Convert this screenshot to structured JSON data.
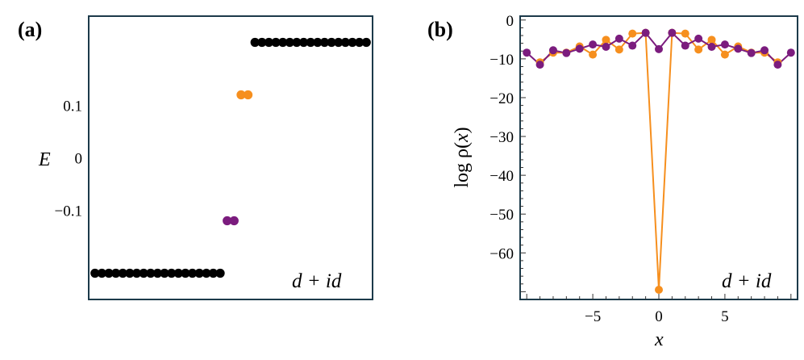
{
  "chart_data": [
    {
      "panel_label": "(a)",
      "type": "scatter",
      "ylabel": "E",
      "yticks": [
        {
          "value": 0.1,
          "label": "0.1"
        },
        {
          "value": 0,
          "label": "0"
        },
        {
          "value": -0.1,
          "label": "−0.1"
        }
      ],
      "ylim": [
        -0.27,
        0.27
      ],
      "xlim": [
        0.1,
        40.9
      ],
      "annotation": "d + id",
      "colors": {
        "bulk": "#000000",
        "upper_edge": "#F68F1E",
        "lower_edge": "#7B1C7E"
      },
      "series": [
        {
          "name": "bulk-lower",
          "color": "#000000",
          "x": [
            1,
            2,
            3,
            4,
            5,
            6,
            7,
            8,
            9,
            10,
            11,
            12,
            13,
            14,
            15,
            16,
            17,
            18,
            19
          ],
          "y": [
            -0.22,
            -0.22,
            -0.22,
            -0.22,
            -0.22,
            -0.22,
            -0.22,
            -0.22,
            -0.22,
            -0.22,
            -0.22,
            -0.22,
            -0.22,
            -0.22,
            -0.22,
            -0.22,
            -0.22,
            -0.22,
            -0.22
          ]
        },
        {
          "name": "edge-lower",
          "color": "#7B1C7E",
          "x": [
            20,
            21
          ],
          "y": [
            -0.12,
            -0.12
          ]
        },
        {
          "name": "edge-upper",
          "color": "#F68F1E",
          "x": [
            22,
            23
          ],
          "y": [
            0.12,
            0.12
          ]
        },
        {
          "name": "bulk-upper",
          "color": "#000000",
          "x": [
            24,
            25,
            26,
            27,
            28,
            29,
            30,
            31,
            32,
            33,
            34,
            35,
            36,
            37,
            38,
            39,
            40
          ],
          "y": [
            0.22,
            0.22,
            0.22,
            0.22,
            0.22,
            0.22,
            0.22,
            0.22,
            0.22,
            0.22,
            0.22,
            0.22,
            0.22,
            0.22,
            0.22,
            0.22,
            0.22
          ]
        }
      ]
    },
    {
      "panel_label": "(b)",
      "type": "line",
      "xlabel": "x",
      "ylabel_main": "log ρ(",
      "ylabel_var": "x",
      "ylabel_close": ")",
      "xlim": [
        -10.5,
        10.5
      ],
      "ylim": [
        -72,
        1
      ],
      "xticks": [
        {
          "value": -5,
          "label": "−5"
        },
        {
          "value": 0,
          "label": "0"
        },
        {
          "value": 5,
          "label": "5"
        }
      ],
      "yticks": [
        {
          "value": 0,
          "label": "0"
        },
        {
          "value": -10,
          "label": "−10"
        },
        {
          "value": -20,
          "label": "−20"
        },
        {
          "value": -30,
          "label": "−30"
        },
        {
          "value": -40,
          "label": "−40"
        },
        {
          "value": -50,
          "label": "−50"
        },
        {
          "value": -60,
          "label": "−60"
        }
      ],
      "annotation": "d + id",
      "series": [
        {
          "name": "orange",
          "color": "#F68F1E",
          "x": [
            -9,
            -8,
            -7,
            -6,
            -5,
            -4,
            -3,
            -2,
            -1,
            0,
            1,
            2,
            3,
            4,
            5,
            6,
            7,
            8,
            9
          ],
          "y": [
            -10.9,
            -8.4,
            -8.4,
            -6.8,
            -8.9,
            -5.1,
            -7.6,
            -3.5,
            -3.3,
            -69.5,
            -3.3,
            -3.5,
            -7.6,
            -5.1,
            -8.9,
            -6.8,
            -8.4,
            -8.4,
            -10.9
          ]
        },
        {
          "name": "purple",
          "color": "#7B1C7E",
          "x": [
            -10,
            -9,
            -8,
            -7,
            -6,
            -5,
            -4,
            -3,
            -2,
            -1,
            0,
            1,
            2,
            3,
            4,
            5,
            6,
            7,
            8,
            9,
            10
          ],
          "y": [
            -8.4,
            -11.5,
            -7.8,
            -8.5,
            -7.4,
            -6.3,
            -6.9,
            -4.8,
            -6.6,
            -3.3,
            -7.5,
            -3.3,
            -6.6,
            -4.8,
            -6.9,
            -6.3,
            -7.4,
            -8.5,
            -7.8,
            -11.5,
            -8.4
          ]
        }
      ]
    }
  ]
}
